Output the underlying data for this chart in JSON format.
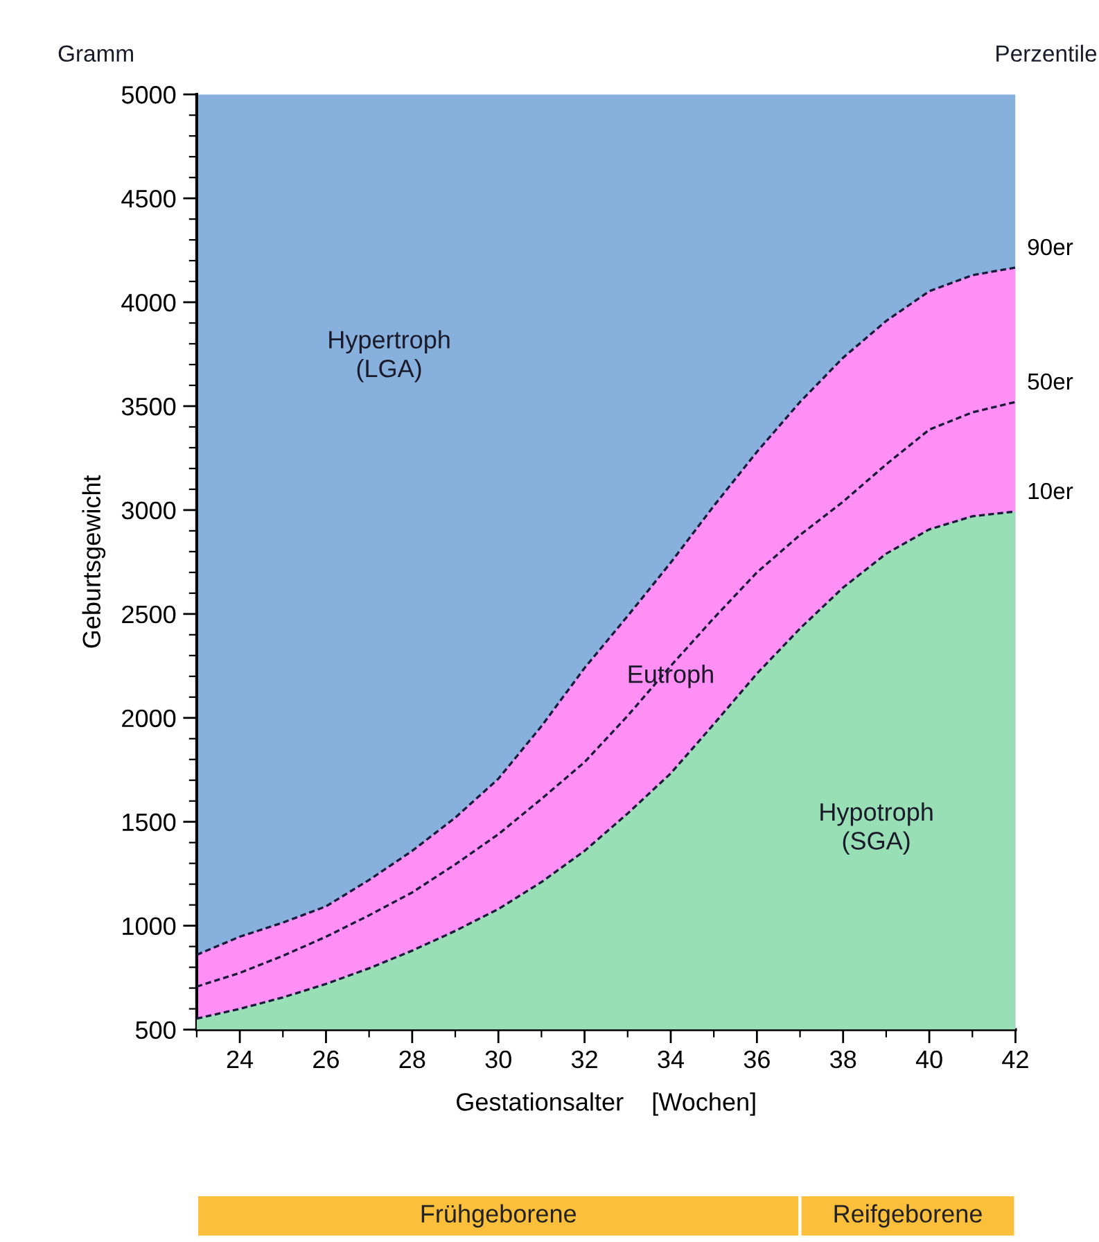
{
  "chart_data": [
    {
      "type": "line",
      "xlabel": "Gestationsalter    [Wochen]",
      "ylabel": "Geburtsgewicht",
      "x": [
        23,
        24,
        25,
        26,
        27,
        28,
        29,
        30,
        31,
        32,
        33,
        34,
        35,
        36,
        37,
        38,
        39,
        40,
        41,
        42
      ],
      "series": [
        {
          "name": "90er",
          "type": "area",
          "color": "#ff8ef5",
          "values": [
            860,
            947,
            1015,
            1093,
            1220,
            1360,
            1520,
            1707,
            1960,
            2240,
            2490,
            2747,
            3020,
            3280,
            3520,
            3733,
            3910,
            4053,
            4130,
            4167
          ]
        },
        {
          "name": "50er",
          "type": "line",
          "color": "#1a1a3a",
          "values": [
            707,
            773,
            855,
            947,
            1050,
            1160,
            1295,
            1440,
            1610,
            1787,
            2010,
            2250,
            2480,
            2700,
            2880,
            3040,
            3220,
            3387,
            3470,
            3520
          ]
        },
        {
          "name": "10er",
          "type": "area",
          "color": "#99dfb5",
          "values": [
            553,
            600,
            655,
            720,
            795,
            880,
            975,
            1080,
            1210,
            1360,
            1540,
            1733,
            1970,
            2213,
            2430,
            2627,
            2790,
            2907,
            2970,
            2993
          ]
        }
      ],
      "line_style": "dashed",
      "marker": "none",
      "grid": false,
      "legend": false,
      "xlim": [
        23,
        42
      ],
      "xticks": [
        24,
        26,
        28,
        30,
        32,
        34,
        36,
        38,
        40,
        42
      ],
      "ylim": [
        500,
        5000
      ],
      "yticks": [
        500,
        1000,
        1500,
        2000,
        2500,
        3000,
        3500,
        4000,
        4500,
        5000
      ],
      "bands": [
        {
          "axis": "y",
          "from": 500,
          "to": 5000,
          "color": "#87b0dd"
        }
      ],
      "annotations": [
        "Gramm",
        "Perzentile",
        "Hypertroph\n(LGA)",
        {
          "text": "Eutroph",
          "x": 34,
          "y": 2200
        },
        "Hypotroph\n(SGA)"
      ]
    },
    {
      "type": "bar",
      "orientation": "horizontal",
      "categories": [
        null
      ],
      "series": [
        {
          "name": "Frühgeborene",
          "color": "#fbbf3c",
          "base": [
            23
          ],
          "values": [
            14
          ]
        },
        {
          "name": "Reifgeborene",
          "color": "#fbbf3c",
          "base": [
            37
          ],
          "values": [
            5
          ]
        }
      ],
      "xlim": [
        23,
        42
      ],
      "tick_labels": false,
      "legend": false
    }
  ]
}
